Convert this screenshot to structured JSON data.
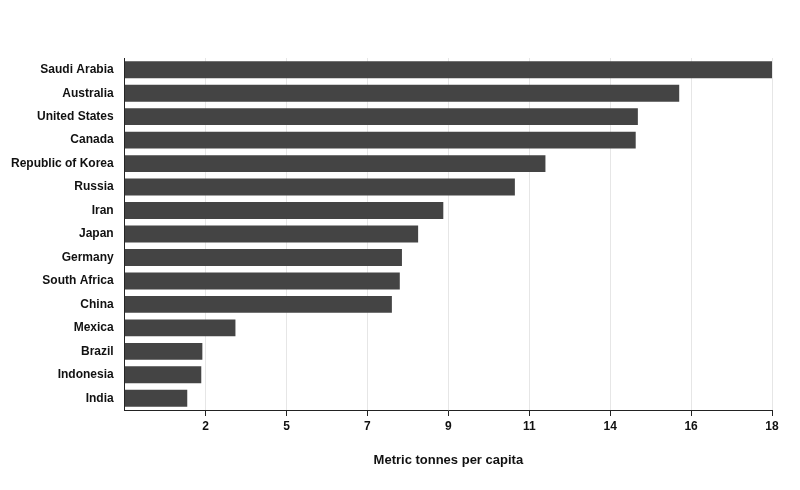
{
  "chart_data": {
    "type": "bar",
    "orientation": "horizontal",
    "xlabel": "Metric tonnes per capita",
    "categories": [
      "Saudi Arabia",
      "Australia",
      "United States",
      "Canada",
      "Republic of Korea",
      "Russia",
      "Iran",
      "Japan",
      "Germany",
      "South Africa",
      "China",
      "Mexica",
      "Brazil",
      "Indonesia",
      "India"
    ],
    "values": [
      18.0,
      15.42,
      14.27,
      14.21,
      11.7,
      10.85,
      8.86,
      8.16,
      7.71,
      7.65,
      7.43,
      3.08,
      2.16,
      2.13,
      1.74
    ],
    "color": "#444444",
    "xlim": [
      0,
      18
    ],
    "xticks": [
      {
        "value": 2.25,
        "label": "2"
      },
      {
        "value": 4.5,
        "label": "5"
      },
      {
        "value": 6.75,
        "label": "7"
      },
      9,
      {
        "value": 11.25,
        "label": "11"
      },
      {
        "value": 13.5,
        "label": "14"
      },
      {
        "value": 15.75,
        "label": "16"
      },
      18
    ],
    "grid": true
  }
}
